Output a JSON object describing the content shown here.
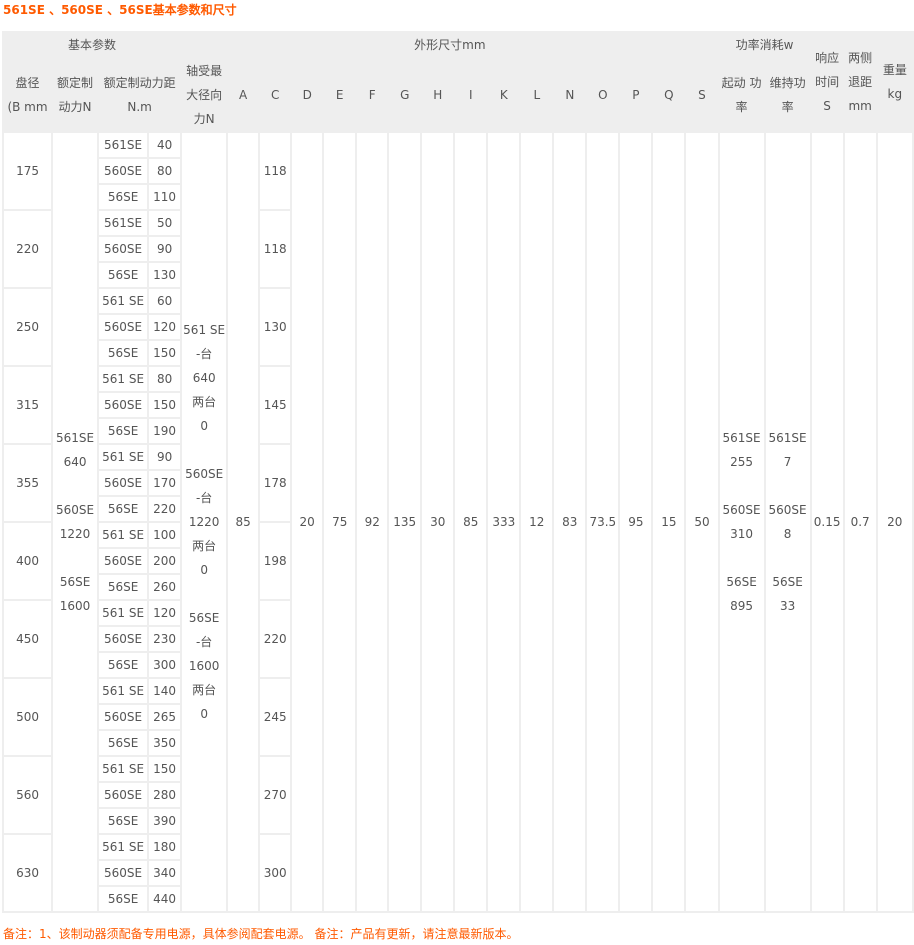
{
  "title": "561SE 、560SE 、56SE基本参数和尺寸",
  "header": {
    "group_basic": "基本参数",
    "group_dims": "外形尺寸mm",
    "group_power": "功率消耗w",
    "response": "响应\n时间S",
    "retract": "两侧\n退距\nmm",
    "weight": "重量\nkg",
    "disc": "盘径\n(B mm",
    "force": "额定制\n动力N",
    "torque": "额定制动力距\nN.m",
    "radial": "轴受最\n大径向\n力N",
    "letters": [
      "A",
      "C",
      "D",
      "E",
      "F",
      "G",
      "H",
      "I",
      "K",
      "L",
      "N",
      "O",
      "P",
      "Q",
      "S"
    ],
    "start_power": "起动 功\n率",
    "hold_power": "维持功\n率"
  },
  "rows": [
    {
      "disc": "175",
      "C": "118",
      "torques": [
        [
          "561SE",
          "40"
        ],
        [
          "560SE",
          "80"
        ],
        [
          "56SE",
          "110"
        ]
      ]
    },
    {
      "disc": "220",
      "C": "118",
      "torques": [
        [
          "561SE",
          "50"
        ],
        [
          "560SE",
          "90"
        ],
        [
          "56SE",
          "130"
        ]
      ]
    },
    {
      "disc": "250",
      "C": "130",
      "torques": [
        [
          "561 SE",
          "60"
        ],
        [
          "560SE",
          "120"
        ],
        [
          "56SE",
          "150"
        ]
      ]
    },
    {
      "disc": "315",
      "C": "145",
      "torques": [
        [
          "561 SE",
          "80"
        ],
        [
          "560SE",
          "150"
        ],
        [
          "56SE",
          "190"
        ]
      ]
    },
    {
      "disc": "355",
      "C": "178",
      "torques": [
        [
          "561 SE",
          "90"
        ],
        [
          "560SE",
          "170"
        ],
        [
          "56SE",
          "220"
        ]
      ]
    },
    {
      "disc": "400",
      "C": "198",
      "torques": [
        [
          "561 SE",
          "100"
        ],
        [
          "560SE",
          "200"
        ],
        [
          "56SE",
          "260"
        ]
      ]
    },
    {
      "disc": "450",
      "C": "220",
      "torques": [
        [
          "561 SE",
          "120"
        ],
        [
          "560SE",
          "230"
        ],
        [
          "56SE",
          "300"
        ]
      ]
    },
    {
      "disc": "500",
      "C": "245",
      "torques": [
        [
          "561 SE",
          "140"
        ],
        [
          "560SE",
          "265"
        ],
        [
          "56SE",
          "350"
        ]
      ]
    },
    {
      "disc": "560",
      "C": "270",
      "torques": [
        [
          "561 SE",
          "150"
        ],
        [
          "560SE",
          "280"
        ],
        [
          "56SE",
          "390"
        ]
      ]
    },
    {
      "disc": "630",
      "C": "300",
      "torques": [
        [
          "561 SE",
          "180"
        ],
        [
          "560SE",
          "340"
        ],
        [
          "56SE",
          "440"
        ]
      ]
    }
  ],
  "shared": {
    "force": "561SE\n640\n\n560SE\n1220\n\n56SE\n1600",
    "radial": "561 SE\n-台\n640\n两台\n0\n\n560SE\n-台\n1220\n两台\n0\n\n56SE\n-台\n1600\n两台\n0",
    "A": "85",
    "fixed": [
      "20",
      "75",
      "92",
      "135",
      "30",
      "85",
      "333",
      "12",
      "83",
      "73.5",
      "95",
      "15",
      "50"
    ],
    "start_power": "561SE\n255\n\n560SE\n310\n\n56SE\n895",
    "hold_power": "561SE\n7\n\n560SE\n8\n\n56SE\n33",
    "response": "0.15",
    "retract": "0.7",
    "weight": "20"
  },
  "note": "备注：1、该制动器须配备专用电源，具体参阅配套电源。 备注：产品有更新，请注意最新版本。"
}
